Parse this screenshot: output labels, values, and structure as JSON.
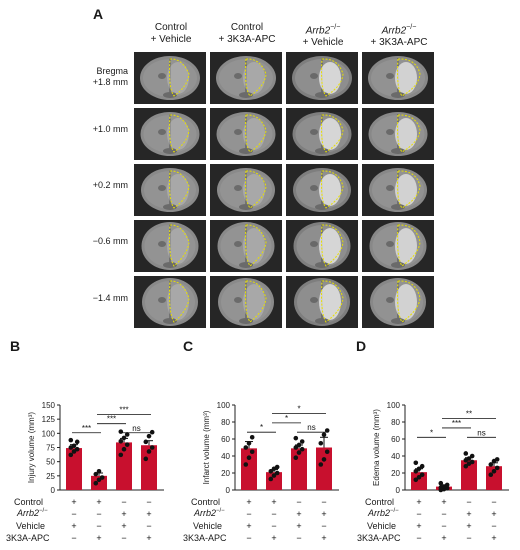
{
  "panel_a": {
    "letter": "A",
    "columns": [
      {
        "line1": "Control",
        "line2": "+ Vehicle",
        "italic": false
      },
      {
        "line1": "Control",
        "line2": "+ 3K3A-APC",
        "italic": false
      },
      {
        "line1": "Arrb2",
        "sup": "−/−",
        "line2": "+ Vehicle",
        "italic": true
      },
      {
        "line1": "Arrb2",
        "sup": "−/−",
        "line2": "+ 3K3A-APC",
        "italic": true
      }
    ],
    "rows": [
      {
        "line1": "Bregma",
        "line2": "+1.8 mm"
      },
      {
        "line1": "",
        "line2": "+1.0 mm"
      },
      {
        "line1": "",
        "line2": "+0.2 mm"
      },
      {
        "line1": "",
        "line2": "−0.6 mm"
      },
      {
        "line1": "",
        "line2": "−1.4 mm"
      }
    ],
    "outline_color": "#e8e000"
  },
  "factors": {
    "labels": [
      "Control",
      "Arrb2",
      "Vehicle",
      "3K3A-APC"
    ],
    "arrb2_sup": "−/−",
    "signs": [
      [
        "+",
        "+",
        "−",
        "−"
      ],
      [
        "−",
        "−",
        "+",
        "+"
      ],
      [
        "+",
        "−",
        "+",
        "−"
      ],
      [
        "−",
        "+",
        "−",
        "+"
      ]
    ]
  },
  "chart_data": [
    {
      "letter": "B",
      "type": "bar",
      "ylabel": "Injury volume (mm³)",
      "ylim": [
        0,
        150
      ],
      "yticks": [
        0,
        25,
        50,
        75,
        100,
        125,
        150
      ],
      "values": [
        74,
        25,
        84,
        79
      ],
      "errors": [
        6,
        5,
        7,
        8
      ],
      "points": [
        [
          62,
          68,
          72,
          75,
          78,
          85,
          88
        ],
        [
          12,
          18,
          22,
          28,
          33
        ],
        [
          62,
          72,
          80,
          86,
          92,
          98,
          103
        ],
        [
          55,
          68,
          75,
          85,
          95,
          102
        ]
      ],
      "bar_color": "#c8102e",
      "brackets": [
        {
          "from": 0,
          "to": 1,
          "y": 101,
          "label": "***"
        },
        {
          "from": 1,
          "to": 2,
          "y": 117,
          "label": "***"
        },
        {
          "from": 1,
          "to": 3,
          "y": 133,
          "label": "***"
        },
        {
          "from": 2,
          "to": 3,
          "y": 101,
          "label": "ns"
        }
      ]
    },
    {
      "letter": "C",
      "type": "bar",
      "ylabel": "Infarct volume (mm³)",
      "ylim": [
        0,
        100
      ],
      "yticks": [
        0,
        20,
        40,
        60,
        80,
        100
      ],
      "values": [
        49,
        21,
        49,
        50
      ],
      "errors": [
        8,
        3,
        4,
        12
      ],
      "points": [
        [
          30,
          38,
          45,
          50,
          55,
          62
        ],
        [
          13,
          17,
          20,
          22,
          25,
          27
        ],
        [
          38,
          44,
          48,
          50,
          53,
          57,
          61
        ],
        [
          30,
          36,
          45,
          55,
          65,
          70
        ]
      ],
      "bar_color": "#c8102e",
      "brackets": [
        {
          "from": 0,
          "to": 1,
          "y": 68,
          "label": "*"
        },
        {
          "from": 1,
          "to": 2,
          "y": 79,
          "label": "*"
        },
        {
          "from": 1,
          "to": 3,
          "y": 90,
          "label": "*"
        },
        {
          "from": 2,
          "to": 3,
          "y": 68,
          "label": "ns"
        }
      ]
    },
    {
      "letter": "D",
      "type": "bar",
      "ylabel": "Edema volume (mm³)",
      "ylim": [
        0,
        100
      ],
      "yticks": [
        0,
        20,
        40,
        60,
        80,
        100
      ],
      "values": [
        21,
        4,
        35,
        28
      ],
      "errors": [
        4,
        2,
        3,
        4
      ],
      "points": [
        [
          12,
          15,
          18,
          22,
          25,
          28,
          32
        ],
        [
          0,
          1,
          2,
          3,
          4,
          6,
          8
        ],
        [
          28,
          31,
          33,
          35,
          37,
          40,
          43
        ],
        [
          18,
          22,
          26,
          30,
          34,
          36
        ]
      ],
      "bar_color": "#c8102e",
      "brackets": [
        {
          "from": 0,
          "to": 1,
          "y": 62,
          "label": "*"
        },
        {
          "from": 1,
          "to": 2,
          "y": 73,
          "label": "***"
        },
        {
          "from": 1,
          "to": 3,
          "y": 84,
          "label": "**"
        },
        {
          "from": 2,
          "to": 3,
          "y": 62,
          "label": "ns"
        }
      ]
    }
  ]
}
